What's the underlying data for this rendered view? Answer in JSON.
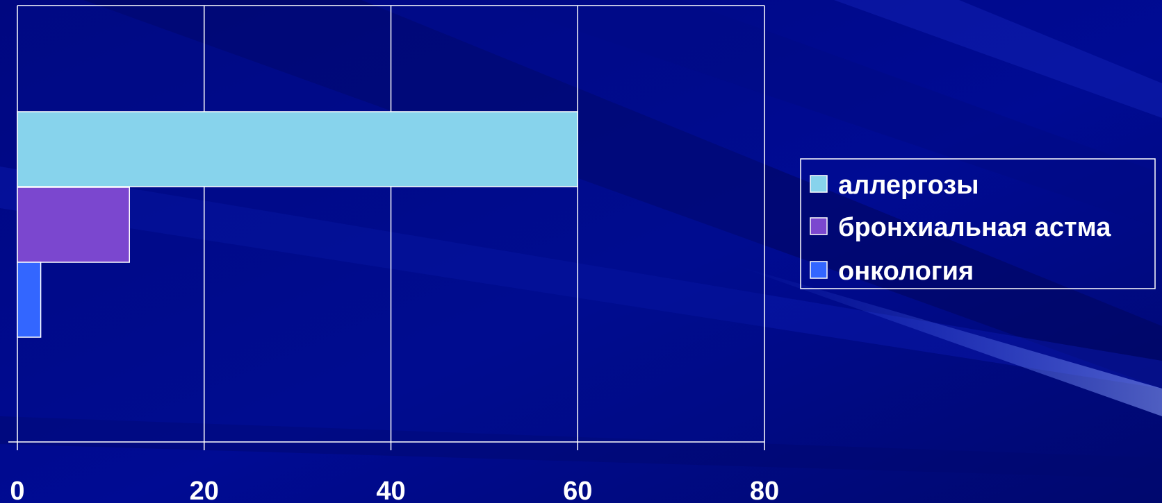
{
  "chart_data": {
    "type": "bar",
    "orientation": "horizontal",
    "categories": [
      ""
    ],
    "series": [
      {
        "name": "аллергозы",
        "values": [
          60
        ],
        "color": "#87d3ec"
      },
      {
        "name": "бронхиальная астма",
        "values": [
          12
        ],
        "color": "#7b47cf"
      },
      {
        "name": "онкология",
        "values": [
          2.5
        ],
        "color": "#3366ff"
      }
    ],
    "xlim": [
      0,
      80
    ],
    "x_ticks": [
      "0",
      "20",
      "40",
      "60",
      "80"
    ],
    "grid": true,
    "legend_position": "right",
    "title": "",
    "xlabel": "",
    "ylabel": ""
  },
  "colors": {
    "background": "#000a8c",
    "background_stripe": "#0b1fb4",
    "plot_background": "#000e8a",
    "gridline": "#ffffff",
    "text": "#ffffff"
  }
}
